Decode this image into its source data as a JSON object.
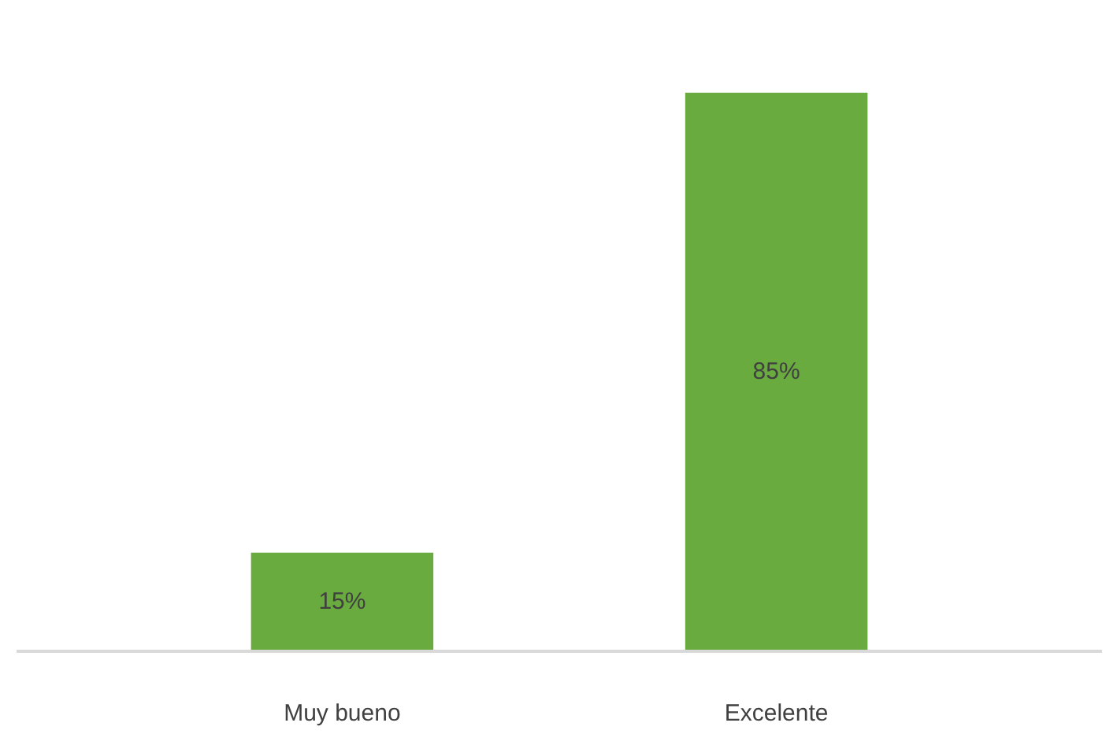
{
  "chart_data": {
    "type": "bar",
    "categories": [
      "Muy bueno",
      "Excelente"
    ],
    "values": [
      15,
      85
    ],
    "color": "#6aab3f",
    "data_labels": true,
    "value_labels": [
      "15%",
      "85%"
    ],
    "grid": false
  }
}
